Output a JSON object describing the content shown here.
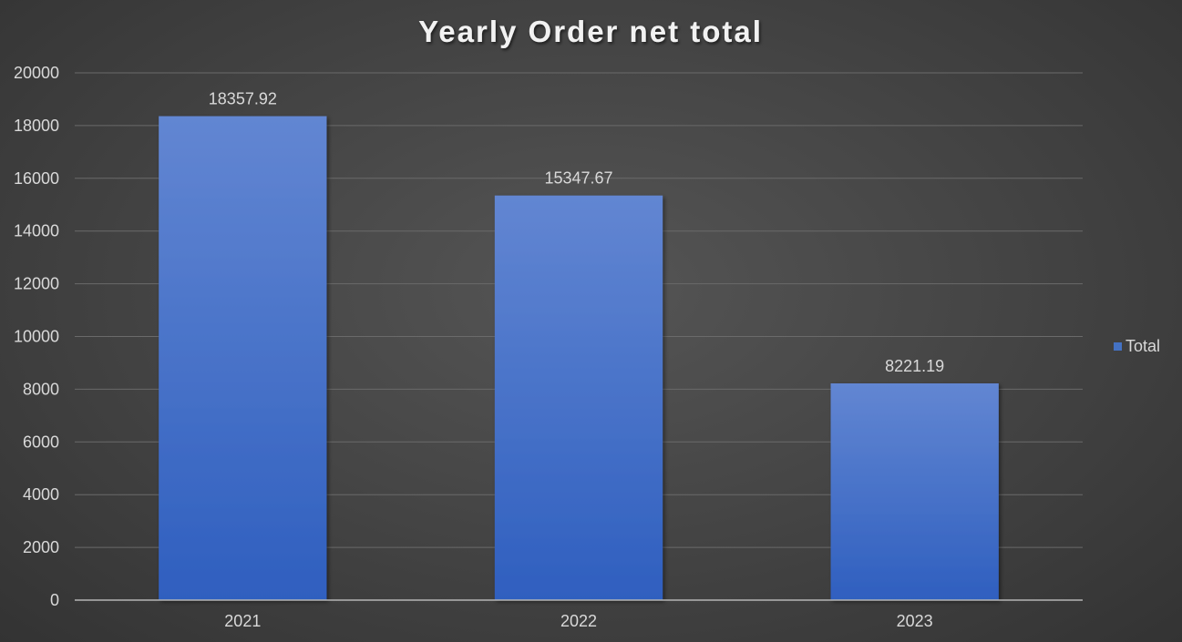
{
  "chart_data": {
    "type": "bar",
    "title": "Yearly Order net total",
    "categories": [
      "2021",
      "2022",
      "2023"
    ],
    "series": [
      {
        "name": "Total",
        "values": [
          18357.92,
          15347.67,
          8221.19
        ]
      }
    ],
    "data_labels": [
      "18357.92",
      "15347.67",
      "8221.19"
    ],
    "ylim": [
      0,
      20000
    ],
    "yticks": [
      0,
      2000,
      4000,
      6000,
      8000,
      10000,
      12000,
      14000,
      16000,
      18000,
      20000
    ],
    "xlabel": "",
    "ylabel": "",
    "grid": true,
    "legend_position": "right",
    "colors": {
      "bar_top": "#6286d2",
      "bar_bottom": "#2f5fbf",
      "legend_swatch": "#4472c4"
    }
  }
}
